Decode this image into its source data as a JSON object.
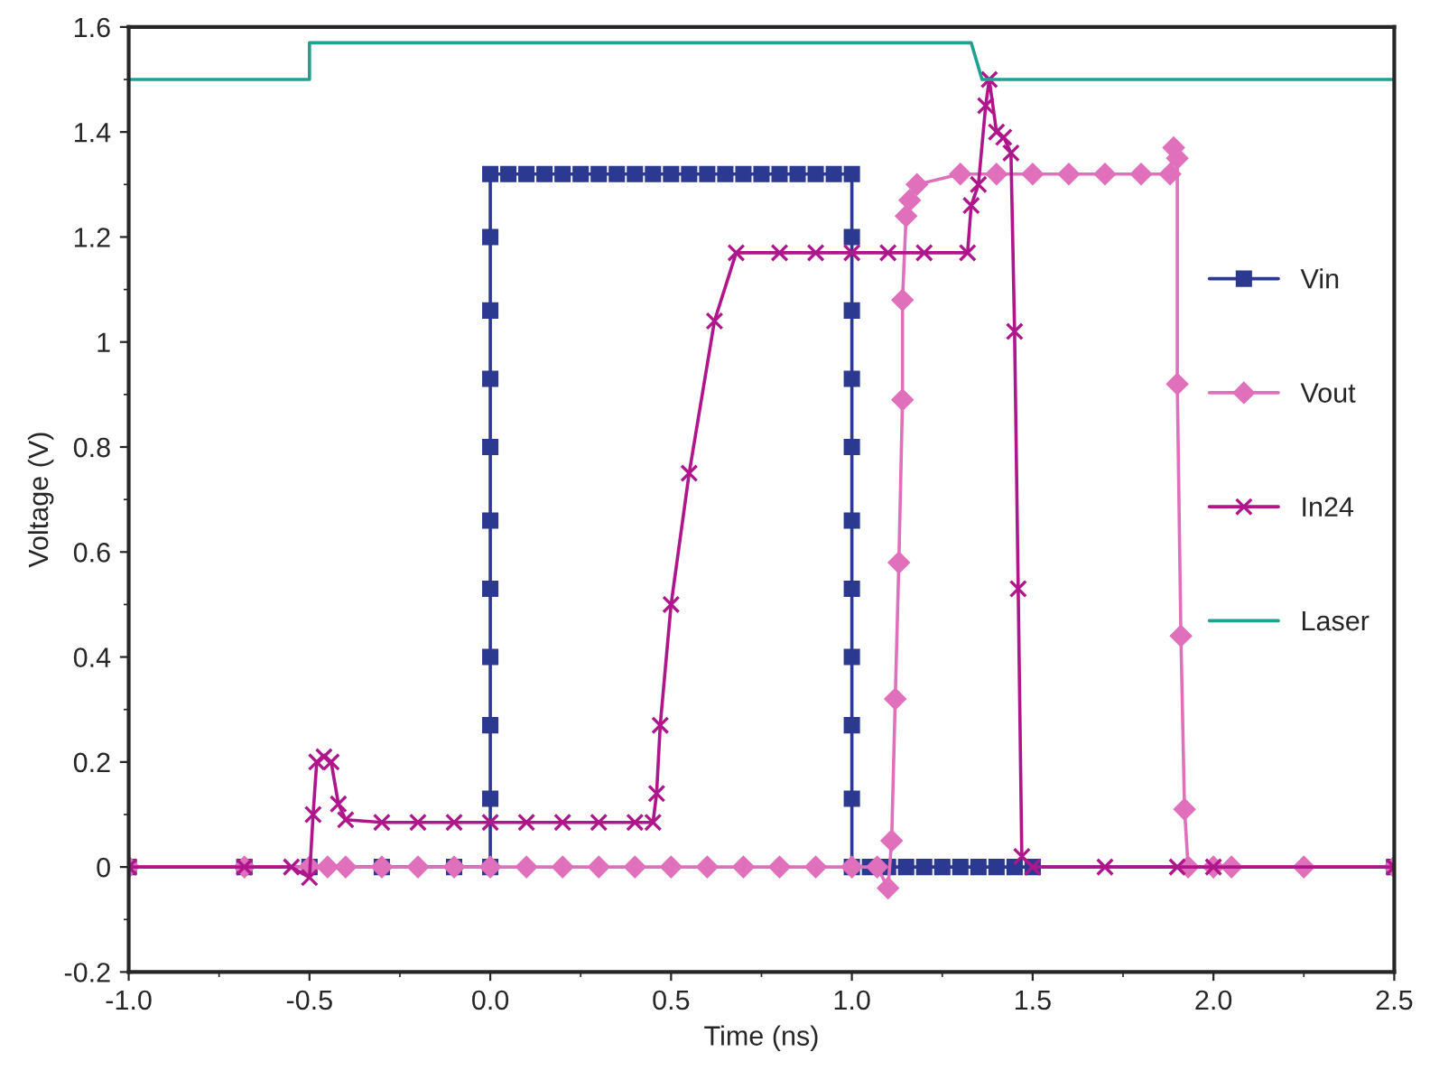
{
  "chart_data": {
    "type": "line",
    "xlabel": "Time (ns)",
    "ylabel": "Voltage (V)",
    "xlim": [
      -1.0,
      2.5
    ],
    "ylim": [
      -0.2,
      1.6
    ],
    "xticks": [
      {
        "value": -1.0,
        "label": "-1.0"
      },
      {
        "value": -0.5,
        "label": "-0.5"
      },
      {
        "value": 0.0,
        "label": "0.0"
      },
      {
        "value": 0.5,
        "label": "0.5"
      },
      {
        "value": 1.0,
        "label": "1.0"
      },
      {
        "value": 1.5,
        "label": "1.5"
      },
      {
        "value": 2.0,
        "label": "2.0"
      },
      {
        "value": 2.5,
        "label": "2.5"
      }
    ],
    "yticks": [
      -0.2,
      0,
      0.2,
      0.4,
      0.6,
      0.8,
      1,
      1.2,
      1.4,
      1.6
    ],
    "grid": false,
    "legend": "right",
    "line_style": "solid",
    "series": [
      {
        "name": "Vin",
        "color": "#2b3990",
        "marker": "square",
        "x": [
          -1.0,
          -0.68,
          -0.5,
          -0.3,
          -0.1,
          0.0,
          0.0,
          0.0,
          0.0,
          0.0,
          0.0,
          0.0,
          0.0,
          0.0,
          0.0,
          0.0,
          0.05,
          0.1,
          0.15,
          0.2,
          0.25,
          0.3,
          0.35,
          0.4,
          0.45,
          0.5,
          0.55,
          0.6,
          0.65,
          0.7,
          0.75,
          0.8,
          0.85,
          0.9,
          0.95,
          1.0,
          1.0,
          1.0,
          1.0,
          1.0,
          1.0,
          1.0,
          1.0,
          1.0,
          1.0,
          1.0,
          1.05,
          1.1,
          1.15,
          1.2,
          1.25,
          1.3,
          1.35,
          1.4,
          1.45,
          1.5,
          2.5
        ],
        "values": [
          0,
          0,
          0,
          0,
          0,
          0,
          0.13,
          0.27,
          0.4,
          0.53,
          0.66,
          0.8,
          0.93,
          1.06,
          1.2,
          1.32,
          1.32,
          1.32,
          1.32,
          1.32,
          1.32,
          1.32,
          1.32,
          1.32,
          1.32,
          1.32,
          1.32,
          1.32,
          1.32,
          1.32,
          1.32,
          1.32,
          1.32,
          1.32,
          1.32,
          1.32,
          1.2,
          1.06,
          0.93,
          0.8,
          0.66,
          0.53,
          0.4,
          0.27,
          0.13,
          0,
          0,
          0,
          0,
          0,
          0,
          0,
          0,
          0,
          0,
          0,
          0
        ]
      },
      {
        "name": "Vout",
        "color": "#e070bb",
        "marker": "diamond",
        "x": [
          -1.0,
          -0.68,
          -0.5,
          -0.45,
          -0.4,
          -0.3,
          -0.2,
          -0.1,
          0.0,
          0.1,
          0.2,
          0.3,
          0.4,
          0.5,
          0.6,
          0.7,
          0.8,
          0.9,
          1.0,
          1.07,
          1.1,
          1.11,
          1.12,
          1.13,
          1.14,
          1.14,
          1.15,
          1.16,
          1.18,
          1.3,
          1.4,
          1.5,
          1.6,
          1.7,
          1.8,
          1.88,
          1.89,
          1.9,
          1.9,
          1.91,
          1.92,
          1.93,
          2.0,
          2.05,
          2.25,
          2.5
        ],
        "values": [
          0,
          0,
          0,
          0,
          0,
          0,
          0,
          0,
          0,
          0,
          0,
          0,
          0,
          0,
          0,
          0,
          0,
          0,
          0,
          0,
          -0.04,
          0.05,
          0.32,
          0.58,
          0.89,
          1.08,
          1.24,
          1.27,
          1.3,
          1.32,
          1.32,
          1.32,
          1.32,
          1.32,
          1.32,
          1.32,
          1.37,
          1.35,
          0.92,
          0.44,
          0.11,
          0,
          0,
          0,
          0,
          0
        ]
      },
      {
        "name": "In24",
        "color": "#b0168c",
        "marker": "cross",
        "x": [
          -1.0,
          -0.68,
          -0.55,
          -0.5,
          -0.49,
          -0.48,
          -0.46,
          -0.44,
          -0.42,
          -0.4,
          -0.3,
          -0.2,
          -0.1,
          0.0,
          0.1,
          0.2,
          0.3,
          0.4,
          0.45,
          0.46,
          0.47,
          0.5,
          0.55,
          0.62,
          0.68,
          0.8,
          0.9,
          1.0,
          1.1,
          1.2,
          1.32,
          1.33,
          1.35,
          1.37,
          1.38,
          1.4,
          1.42,
          1.44,
          1.45,
          1.46,
          1.47,
          1.5,
          1.7,
          1.9,
          2.0,
          2.5
        ],
        "values": [
          0,
          0,
          0,
          -0.02,
          0.1,
          0.2,
          0.21,
          0.2,
          0.12,
          0.09,
          0.085,
          0.085,
          0.085,
          0.085,
          0.085,
          0.085,
          0.085,
          0.085,
          0.085,
          0.14,
          0.27,
          0.5,
          0.75,
          1.04,
          1.17,
          1.17,
          1.17,
          1.17,
          1.17,
          1.17,
          1.17,
          1.26,
          1.3,
          1.45,
          1.5,
          1.4,
          1.39,
          1.36,
          1.02,
          0.53,
          0.02,
          0,
          0,
          0,
          0,
          0
        ]
      },
      {
        "name": "Laser",
        "color": "#20a090",
        "marker": "none",
        "x": [
          -1.0,
          -0.5,
          -0.5,
          1.33,
          1.36,
          2.5
        ],
        "values": [
          1.5,
          1.5,
          1.57,
          1.57,
          1.5,
          1.5
        ]
      }
    ]
  }
}
